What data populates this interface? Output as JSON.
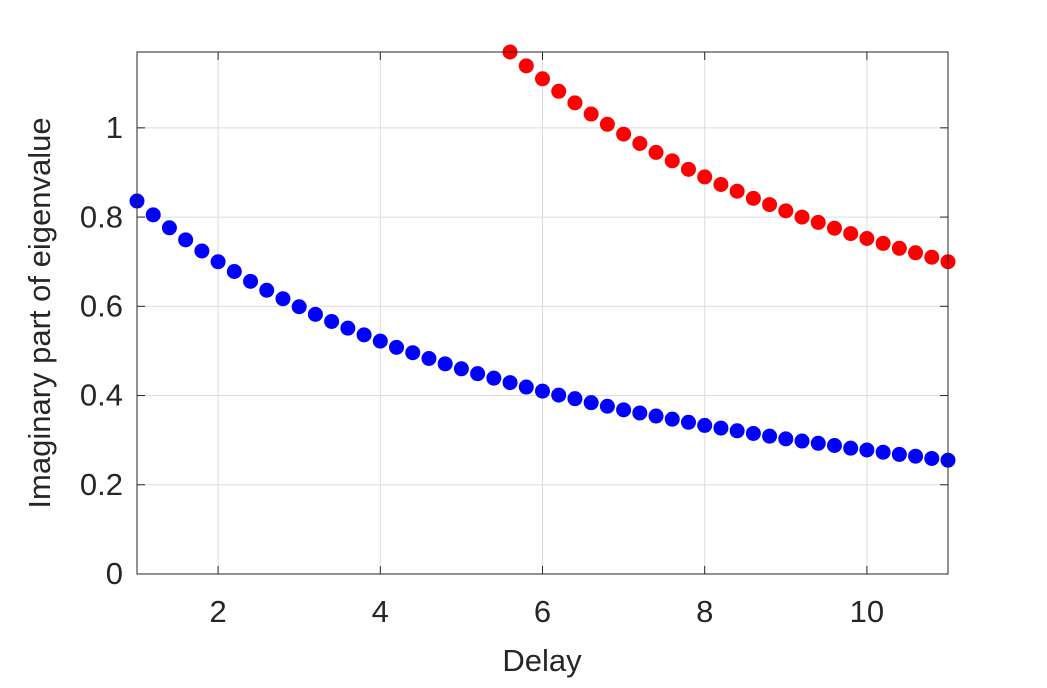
{
  "chart_data": {
    "type": "scatter",
    "xlabel": "Delay",
    "ylabel": "Imaginary part of eigenvalue",
    "xlim": [
      1,
      11
    ],
    "ylim": [
      0,
      1.17
    ],
    "xticks": [
      2,
      4,
      6,
      8,
      10
    ],
    "yticks": [
      0,
      0.2,
      0.4,
      0.6,
      0.8,
      1
    ],
    "grid": true,
    "series": [
      {
        "color": "#0000ff",
        "x": [
          1.0,
          1.2,
          1.4,
          1.6,
          1.8,
          2.0,
          2.2,
          2.4,
          2.6,
          2.8,
          3.0,
          3.2,
          3.4,
          3.6,
          3.8,
          4.0,
          4.2,
          4.4,
          4.6,
          4.8,
          5.0,
          5.2,
          5.4,
          5.6,
          5.8,
          6.0,
          6.2,
          6.4,
          6.6,
          6.8,
          7.0,
          7.2,
          7.4,
          7.6,
          7.8,
          8.0,
          8.2,
          8.4,
          8.6,
          8.8,
          9.0,
          9.2,
          9.4,
          9.6,
          9.8,
          10.0,
          10.2,
          10.4,
          10.6,
          10.8,
          11.0
        ],
        "values": [
          0.836,
          0.805,
          0.776,
          0.749,
          0.724,
          0.7,
          0.678,
          0.656,
          0.636,
          0.617,
          0.599,
          0.582,
          0.566,
          0.551,
          0.536,
          0.522,
          0.508,
          0.496,
          0.483,
          0.471,
          0.46,
          0.449,
          0.439,
          0.429,
          0.419,
          0.41,
          0.401,
          0.393,
          0.384,
          0.376,
          0.368,
          0.361,
          0.354,
          0.347,
          0.34,
          0.333,
          0.327,
          0.321,
          0.315,
          0.309,
          0.303,
          0.298,
          0.293,
          0.288,
          0.282,
          0.278,
          0.273,
          0.268,
          0.264,
          0.259,
          0.255
        ]
      },
      {
        "color": "#ff0000",
        "x": [
          5.6,
          5.8,
          6.0,
          6.2,
          6.4,
          6.6,
          6.8,
          7.0,
          7.2,
          7.4,
          7.6,
          7.8,
          8.0,
          8.2,
          8.4,
          8.6,
          8.8,
          9.0,
          9.2,
          9.4,
          9.6,
          9.8,
          10.0,
          10.2,
          10.4,
          10.6,
          10.8,
          11.0
        ],
        "values": [
          1.17,
          1.139,
          1.11,
          1.082,
          1.056,
          1.031,
          1.008,
          0.986,
          0.965,
          0.945,
          0.926,
          0.907,
          0.89,
          0.873,
          0.858,
          0.842,
          0.828,
          0.814,
          0.8,
          0.788,
          0.775,
          0.763,
          0.752,
          0.741,
          0.73,
          0.72,
          0.71,
          0.7
        ]
      }
    ]
  }
}
